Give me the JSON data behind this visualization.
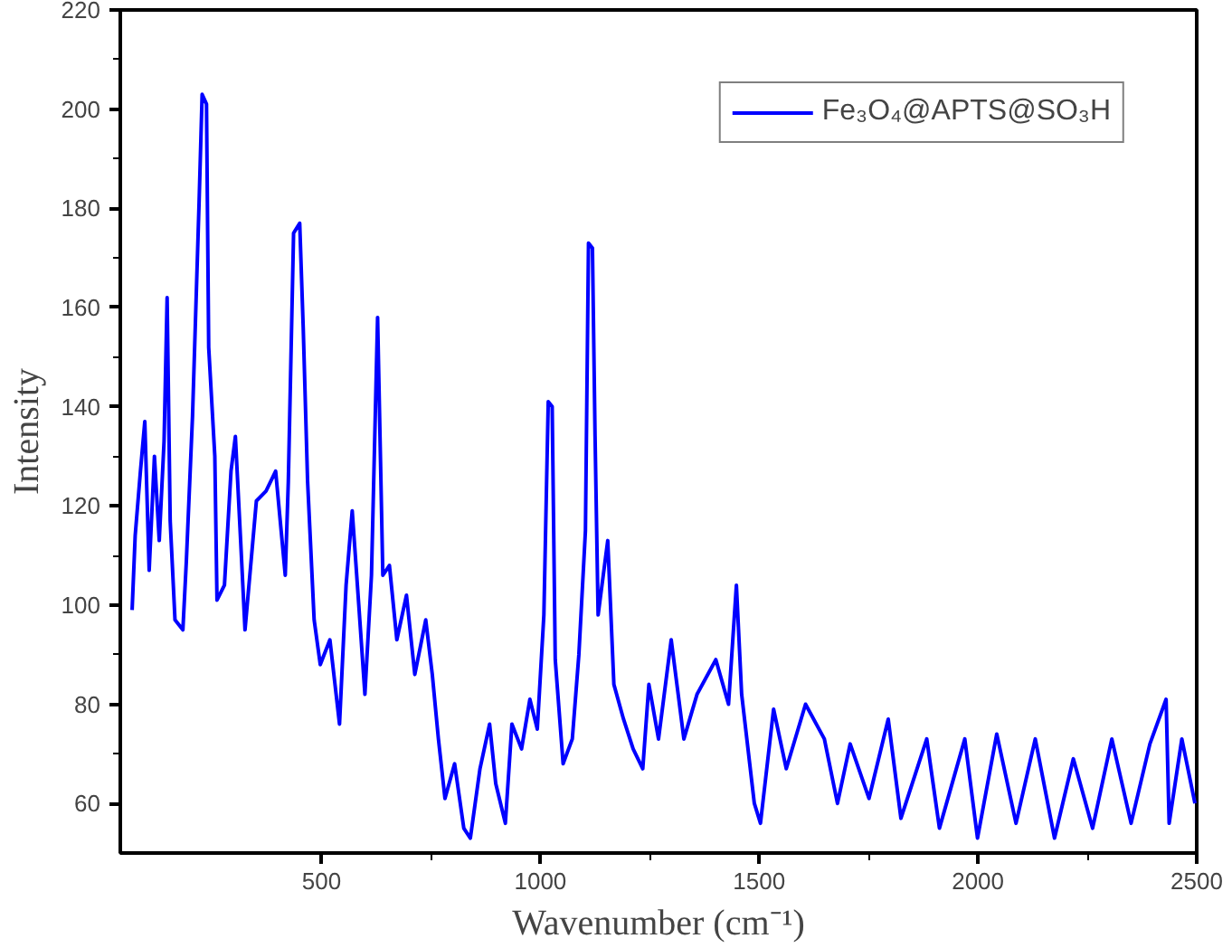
{
  "chart_data": {
    "type": "line",
    "xlabel": "Wavenumber (cm⁻¹)",
    "ylabel": "Intensity",
    "xlim": [
      40,
      2500
    ],
    "ylim": [
      50,
      220
    ],
    "xticks": [
      500,
      1000,
      1500,
      2000,
      2500
    ],
    "yticks": [
      60,
      80,
      100,
      120,
      140,
      160,
      180,
      200,
      220
    ],
    "grid": false,
    "legend": "top right",
    "marker": "none",
    "line_style": "solid",
    "series": [
      {
        "name": "Fe₃O₄@APTS@SO₃H",
        "color": "#0000ff",
        "x": [
          67,
          74,
          86,
          96,
          106,
          118,
          129,
          140,
          147,
          154,
          165,
          183,
          191,
          205,
          220,
          227,
          237,
          242,
          256,
          261,
          278,
          293,
          303,
          315,
          325,
          351,
          373,
          395,
          417,
          424,
          436,
          450,
          458,
          468,
          483,
          497,
          519,
          541,
          556,
          570,
          585,
          599,
          614,
          628,
          640,
          655,
          672,
          694,
          713,
          738,
          753,
          767,
          782,
          804,
          825,
          840,
          862,
          884,
          898,
          920,
          935,
          957,
          976,
          993,
          1008,
          1018,
          1027,
          1034,
          1052,
          1073,
          1088,
          1103,
          1110,
          1119,
          1125,
          1132,
          1154,
          1168,
          1190,
          1212,
          1234,
          1248,
          1270,
          1299,
          1328,
          1358,
          1401,
          1430,
          1448,
          1460,
          1489,
          1503,
          1533,
          1562,
          1606,
          1649,
          1679,
          1708,
          1751,
          1795,
          1824,
          1883,
          1912,
          1970,
          1999,
          2043,
          2087,
          2131,
          2175,
          2218,
          2262,
          2306,
          2350,
          2393,
          2430,
          2437,
          2466,
          2496
        ],
        "values": [
          99,
          114,
          127,
          137,
          107,
          130,
          113,
          133,
          162,
          117,
          97,
          95,
          109,
          138,
          181,
          203,
          201,
          152,
          130,
          101,
          104,
          127,
          134,
          113,
          95,
          121,
          123,
          127,
          106,
          125,
          175,
          177,
          156,
          125,
          97,
          88,
          93,
          76,
          104,
          119,
          100,
          82,
          106,
          158,
          106,
          108,
          93,
          102,
          86,
          97,
          86,
          73,
          61,
          68,
          55,
          53,
          67,
          76,
          64,
          56,
          76,
          71,
          81,
          75,
          98,
          141,
          140,
          89,
          68,
          73,
          90,
          115,
          173,
          172,
          134,
          98,
          113,
          84,
          77,
          71,
          67,
          84,
          73,
          93,
          73,
          82,
          89,
          80,
          104,
          82,
          60,
          56,
          79,
          67,
          80,
          73,
          60,
          72,
          61,
          77,
          57,
          73,
          55,
          73,
          53,
          74,
          56,
          73,
          53,
          69,
          55,
          73,
          56,
          72,
          81,
          56,
          73,
          60
        ]
      }
    ]
  }
}
